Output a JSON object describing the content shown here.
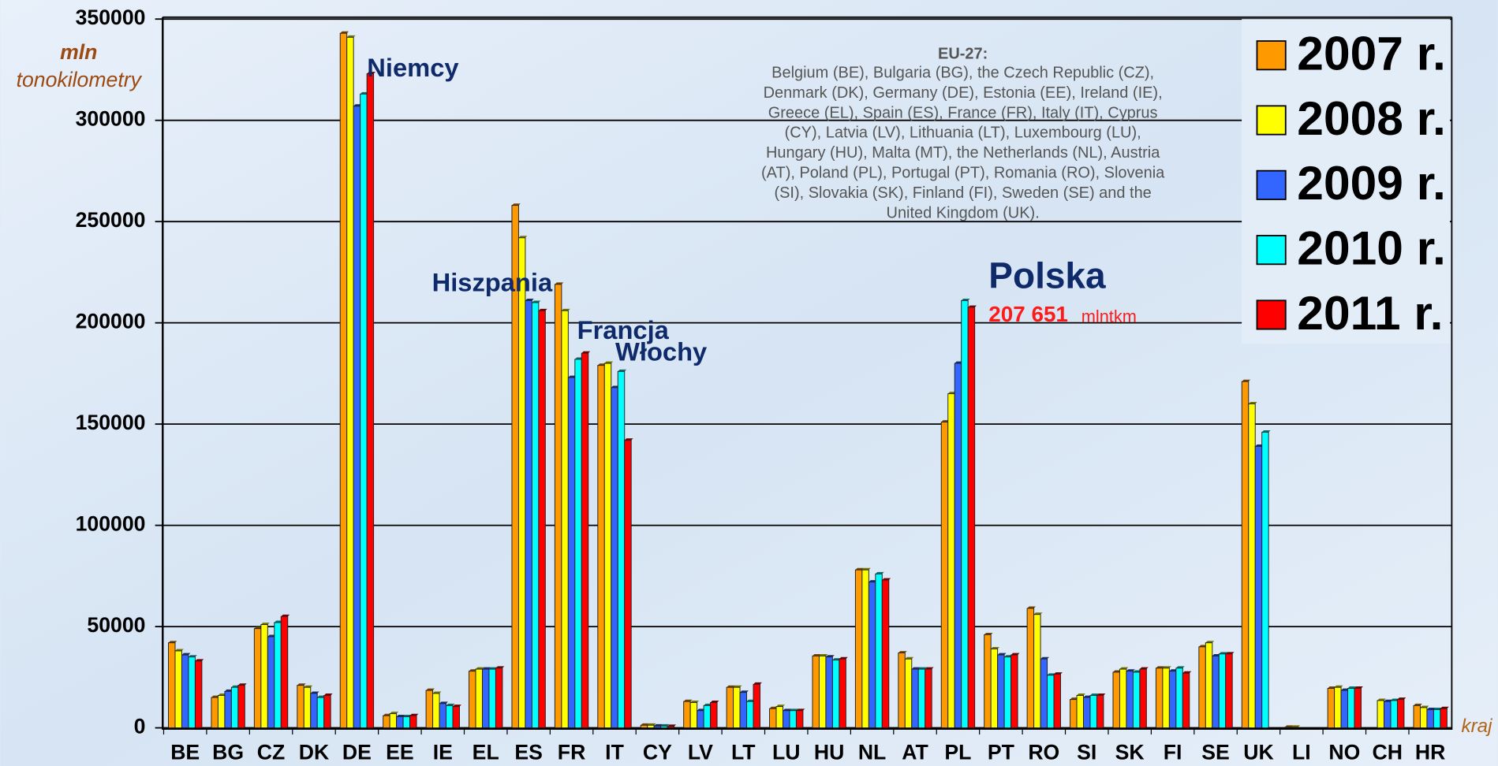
{
  "chart_data": {
    "type": "bar",
    "y_label_line1": "mln",
    "y_label_line2": "tonokilometry",
    "x_label": "kraj",
    "categories": [
      "BE",
      "BG",
      "CZ",
      "DK",
      "DE",
      "EE",
      "IE",
      "EL",
      "ES",
      "FR",
      "IT",
      "CY",
      "LV",
      "LT",
      "LU",
      "HU",
      "NL",
      "AT",
      "PL",
      "PT",
      "RO",
      "SI",
      "SK",
      "FI",
      "SE",
      "UK",
      "LI",
      "NO",
      "CH",
      "HR"
    ],
    "series": [
      {
        "name": "2007 r.",
        "color": "#ff9900",
        "values": [
          42000,
          15000,
          49000,
          21000,
          343000,
          6000,
          18500,
          28000,
          258000,
          219000,
          179000,
          1300,
          13000,
          20000,
          9500,
          35500,
          78000,
          37000,
          151000,
          46000,
          59000,
          14000,
          27500,
          29500,
          40000,
          171000,
          300,
          19500,
          null,
          11000
        ]
      },
      {
        "name": "2008 r.",
        "color": "#ffff00",
        "values": [
          38000,
          16000,
          51000,
          20000,
          341000,
          7000,
          17000,
          29000,
          242000,
          206000,
          180000,
          1300,
          12500,
          20000,
          10500,
          35500,
          78000,
          34000,
          165000,
          39000,
          56000,
          16000,
          29000,
          29500,
          42000,
          160000,
          300,
          20000,
          13500,
          10000
        ]
      },
      {
        "name": "2009 r.",
        "color": "#3366ff",
        "values": [
          36000,
          18000,
          45000,
          17000,
          307000,
          5500,
          12000,
          29000,
          211000,
          173000,
          168000,
          900,
          8500,
          17500,
          8500,
          35000,
          72000,
          29000,
          180000,
          36000,
          34000,
          15000,
          28000,
          28000,
          35500,
          139000,
          null,
          18500,
          13000,
          9000
        ]
      },
      {
        "name": "2010 r.",
        "color": "#00ffff",
        "values": [
          35000,
          20000,
          52000,
          15000,
          313000,
          5500,
          11000,
          29000,
          210000,
          182000,
          176000,
          900,
          11000,
          13000,
          8500,
          33500,
          76000,
          29000,
          211000,
          35000,
          26000,
          16000,
          27500,
          29500,
          36500,
          146000,
          null,
          19500,
          13500,
          9000
        ]
      },
      {
        "name": "2011 r.",
        "color": "#ff0000",
        "values": [
          33000,
          21000,
          55000,
          16000,
          323000,
          6000,
          10500,
          29500,
          206000,
          185000,
          142000,
          700,
          12500,
          21500,
          8500,
          34000,
          73000,
          29000,
          207651,
          36000,
          26500,
          16000,
          29000,
          27000,
          36500,
          null,
          null,
          19500,
          14000,
          9500
        ]
      }
    ],
    "ylim": [
      0,
      350000
    ],
    "yticks": [
      0,
      50000,
      100000,
      150000,
      200000,
      250000,
      300000,
      350000
    ],
    "grid": true,
    "annotations": {
      "de": "Niemcy",
      "es": "Hiszpania",
      "fr": "Francja",
      "it": "Włochy",
      "pl": "Polska",
      "pl_value": "207 651",
      "pl_unit": "mlntkm"
    },
    "note": {
      "title": "EU-27:",
      "lines": [
        "Belgium (BE), Bulgaria (BG), the Czech Republic (CZ),",
        "Denmark (DK), Germany (DE), Estonia (EE), Ireland (IE),",
        "Greece (EL), Spain (ES), France (FR), Italy (IT), Cyprus",
        "(CY), Latvia (LV), Lithuania (LT), Luxembourg (LU),",
        "Hungary (HU), Malta (MT), the Netherlands (NL), Austria",
        "(AT), Poland (PL), Portugal (PT), Romania (RO), Slovenia",
        "(SI), Slovakia (SK), Finland (FI), Sweden (SE) and the",
        "United Kingdom (UK)."
      ]
    }
  }
}
